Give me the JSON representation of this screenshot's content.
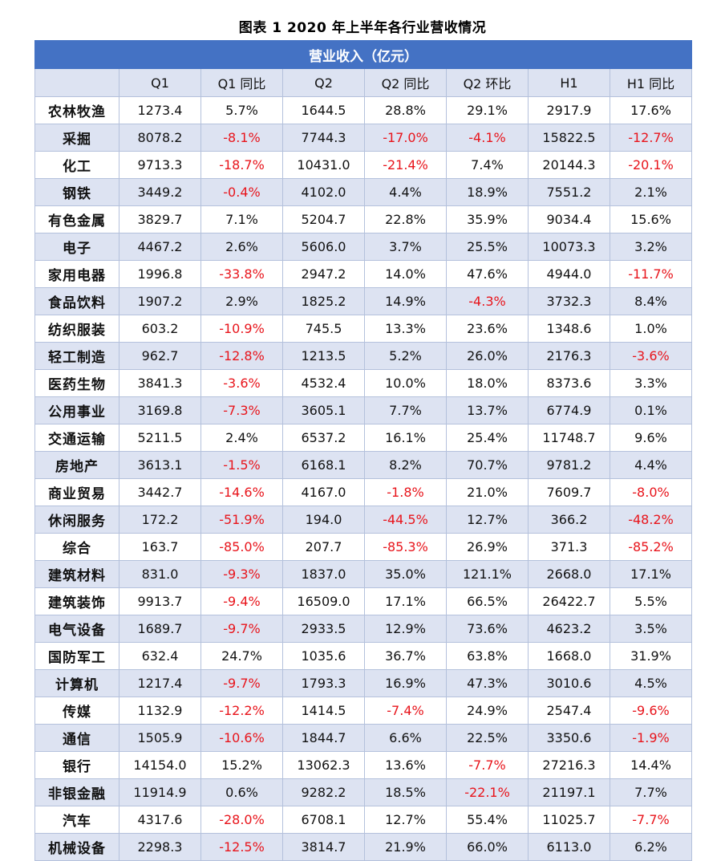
{
  "title": "图表 1 2020 年上半年各行业营收情况",
  "banner": "营业收入（亿元）",
  "columns": [
    "",
    "Q1",
    "Q1 同比",
    "Q2",
    "Q2 同比",
    "Q2 环比",
    "H1",
    "H1 同比"
  ],
  "negative_color": "#e8141b",
  "rows": [
    [
      "农林牧渔",
      "1273.4",
      "5.7%",
      "1644.5",
      "28.8%",
      "29.1%",
      "2917.9",
      "17.6%"
    ],
    [
      "采掘",
      "8078.2",
      "-8.1%",
      "7744.3",
      "-17.0%",
      "-4.1%",
      "15822.5",
      "-12.7%"
    ],
    [
      "化工",
      "9713.3",
      "-18.7%",
      "10431.0",
      "-21.4%",
      "7.4%",
      "20144.3",
      "-20.1%"
    ],
    [
      "钢铁",
      "3449.2",
      "-0.4%",
      "4102.0",
      "4.4%",
      "18.9%",
      "7551.2",
      "2.1%"
    ],
    [
      "有色金属",
      "3829.7",
      "7.1%",
      "5204.7",
      "22.8%",
      "35.9%",
      "9034.4",
      "15.6%"
    ],
    [
      "电子",
      "4467.2",
      "2.6%",
      "5606.0",
      "3.7%",
      "25.5%",
      "10073.3",
      "3.2%"
    ],
    [
      "家用电器",
      "1996.8",
      "-33.8%",
      "2947.2",
      "14.0%",
      "47.6%",
      "4944.0",
      "-11.7%"
    ],
    [
      "食品饮料",
      "1907.2",
      "2.9%",
      "1825.2",
      "14.9%",
      "-4.3%",
      "3732.3",
      "8.4%"
    ],
    [
      "纺织服装",
      "603.2",
      "-10.9%",
      "745.5",
      "13.3%",
      "23.6%",
      "1348.6",
      "1.0%"
    ],
    [
      "轻工制造",
      "962.7",
      "-12.8%",
      "1213.5",
      "5.2%",
      "26.0%",
      "2176.3",
      "-3.6%"
    ],
    [
      "医药生物",
      "3841.3",
      "-3.6%",
      "4532.4",
      "10.0%",
      "18.0%",
      "8373.6",
      "3.3%"
    ],
    [
      "公用事业",
      "3169.8",
      "-7.3%",
      "3605.1",
      "7.7%",
      "13.7%",
      "6774.9",
      "0.1%"
    ],
    [
      "交通运输",
      "5211.5",
      "2.4%",
      "6537.2",
      "16.1%",
      "25.4%",
      "11748.7",
      "9.6%"
    ],
    [
      "房地产",
      "3613.1",
      "-1.5%",
      "6168.1",
      "8.2%",
      "70.7%",
      "9781.2",
      "4.4%"
    ],
    [
      "商业贸易",
      "3442.7",
      "-14.6%",
      "4167.0",
      "-1.8%",
      "21.0%",
      "7609.7",
      "-8.0%"
    ],
    [
      "休闲服务",
      "172.2",
      "-51.9%",
      "194.0",
      "-44.5%",
      "12.7%",
      "366.2",
      "-48.2%"
    ],
    [
      "综合",
      "163.7",
      "-85.0%",
      "207.7",
      "-85.3%",
      "26.9%",
      "371.3",
      "-85.2%"
    ],
    [
      "建筑材料",
      "831.0",
      "-9.3%",
      "1837.0",
      "35.0%",
      "121.1%",
      "2668.0",
      "17.1%"
    ],
    [
      "建筑装饰",
      "9913.7",
      "-9.4%",
      "16509.0",
      "17.1%",
      "66.5%",
      "26422.7",
      "5.5%"
    ],
    [
      "电气设备",
      "1689.7",
      "-9.7%",
      "2933.5",
      "12.9%",
      "73.6%",
      "4623.2",
      "3.5%"
    ],
    [
      "国防军工",
      "632.4",
      "24.7%",
      "1035.6",
      "36.7%",
      "63.8%",
      "1668.0",
      "31.9%"
    ],
    [
      "计算机",
      "1217.4",
      "-9.7%",
      "1793.3",
      "16.9%",
      "47.3%",
      "3010.6",
      "4.5%"
    ],
    [
      "传媒",
      "1132.9",
      "-12.2%",
      "1414.5",
      "-7.4%",
      "24.9%",
      "2547.4",
      "-9.6%"
    ],
    [
      "通信",
      "1505.9",
      "-10.6%",
      "1844.7",
      "6.6%",
      "22.5%",
      "3350.6",
      "-1.9%"
    ],
    [
      "银行",
      "14154.0",
      "15.2%",
      "13062.3",
      "13.6%",
      "-7.7%",
      "27216.3",
      "14.4%"
    ],
    [
      "非银金融",
      "11914.9",
      "0.6%",
      "9282.2",
      "18.5%",
      "-22.1%",
      "21197.1",
      "7.7%"
    ],
    [
      "汽车",
      "4317.6",
      "-28.0%",
      "6708.1",
      "12.7%",
      "55.4%",
      "11025.7",
      "-7.7%"
    ],
    [
      "机械设备",
      "2298.3",
      "-12.5%",
      "3814.7",
      "21.9%",
      "66.0%",
      "6113.0",
      "6.2%"
    ]
  ]
}
